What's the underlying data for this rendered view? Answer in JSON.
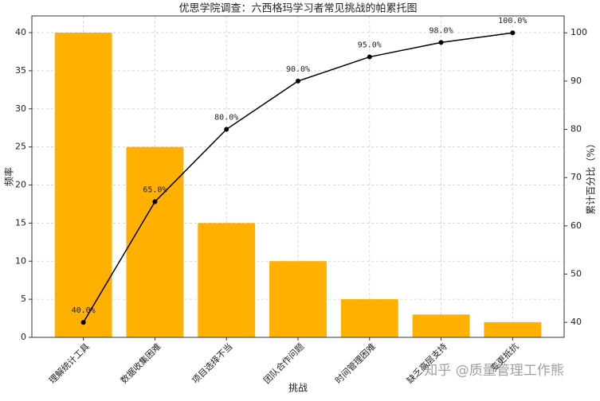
{
  "chart_data": {
    "type": "pareto",
    "title": "优思学院调查：六西格玛学习者常见挑战的帕累托图",
    "x_label": "挑战",
    "y_label": "频率",
    "y2_label": "累计百分比（%）",
    "categories": [
      "理解统计工具",
      "数据收集困难",
      "项目选择不当",
      "团队合作问题",
      "时间管理困难",
      "缺乏高层支持",
      "变更抵抗"
    ],
    "series": [
      {
        "type": "bar",
        "color": "#ffb000",
        "values": [
          40,
          25,
          15,
          10,
          5,
          3,
          2
        ]
      },
      {
        "type": "line",
        "axis": "y2",
        "color": "#000000",
        "values": [
          40,
          65,
          80,
          90,
          95,
          98,
          100
        ],
        "value_labels": [
          "40.0%",
          "65.0%",
          "80.0%",
          "90.0%",
          "95.0%",
          "98.0%",
          "100.0%"
        ]
      }
    ],
    "ylim": [
      0,
      42.2
    ],
    "yticks": [
      0,
      5,
      10,
      15,
      20,
      25,
      30,
      35,
      40
    ],
    "y2lim": [
      36.9,
      103.5
    ],
    "y2ticks": [
      40,
      50,
      60,
      70,
      80,
      90,
      100
    ],
    "grid": true,
    "watermark": "知乎 @质量管理工作熊"
  }
}
